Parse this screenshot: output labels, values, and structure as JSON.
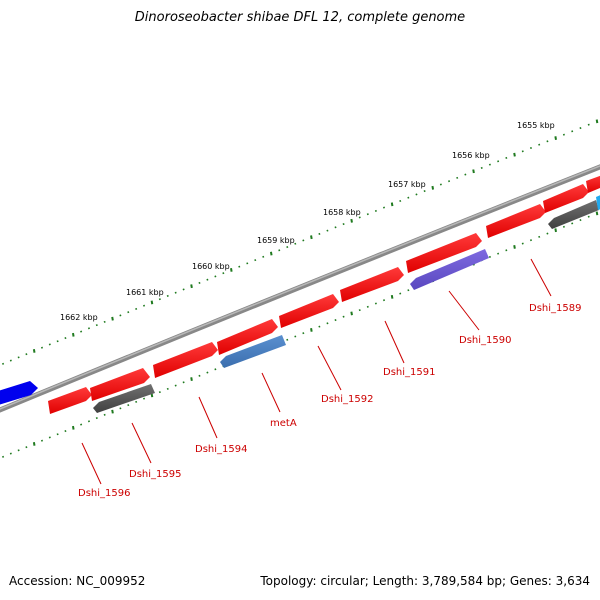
{
  "title": "Dinoroseobacter shibae DFL 12, complete genome",
  "footer": {
    "accession": "Accession: NC_009952",
    "summary": "Topology: circular; Length: 3,789,584 bp; Genes: 3,634"
  },
  "colors": {
    "backbone": "#808080",
    "tick": "#1f7a1f",
    "gene_red": "#ff0000",
    "gene_grey": "#555555",
    "gene_steel": "#4a80c0",
    "gene_purple": "#6e5ad0",
    "gene_blue": "#0000ee",
    "gene_cyan": "#22aaee",
    "label": "#cc0000"
  },
  "scale_labels": [
    {
      "kbp": 1655,
      "text": "1655 kbp"
    },
    {
      "kbp": 1656,
      "text": "1656 kbp"
    },
    {
      "kbp": 1657,
      "text": "1657 kbp"
    },
    {
      "kbp": 1658,
      "text": "1658 kbp"
    },
    {
      "kbp": 1659,
      "text": "1659 kbp"
    },
    {
      "kbp": 1660,
      "text": "1660 kbp"
    },
    {
      "kbp": 1661,
      "text": "1661 kbp"
    },
    {
      "kbp": 1662,
      "text": "1662 kbp"
    }
  ],
  "gene_labels": [
    {
      "text": "Dshi_1589",
      "kbp": 1654.55
    },
    {
      "text": "Dshi_1590",
      "kbp": 1655.9
    },
    {
      "text": "Dshi_1591",
      "kbp": 1656.95
    },
    {
      "text": "Dshi_1592",
      "kbp": 1657.9
    },
    {
      "text": "metA",
      "kbp": 1658.85
    },
    {
      "text": "Dshi_1594",
      "kbp": 1659.6
    },
    {
      "text": "Dshi_1595",
      "kbp": 1660.6
    },
    {
      "text": "Dshi_1596",
      "kbp": 1661.3
    }
  ]
}
